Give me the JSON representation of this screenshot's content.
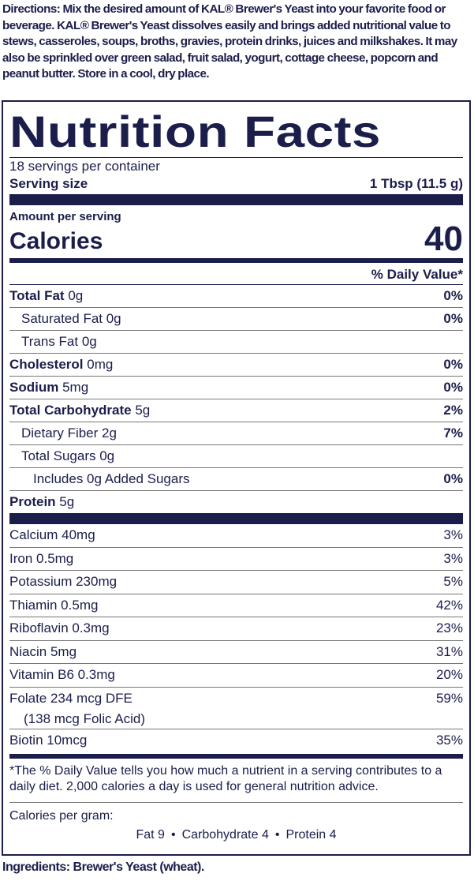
{
  "directions": {
    "label": "Directions:",
    "text": "Mix the desired amount of KAL® Brewer's Yeast into your favorite food or beverage. KAL® Brewer's Yeast dissolves easily and brings added nutritional value to stews, casseroles, soups, broths, gravies, protein drinks, juices and milkshakes. It may also be sprinkled over green salad, fruit salad, yogurt, cottage cheese, popcorn and peanut butter. Store in a cool, dry place."
  },
  "label": {
    "title": "Nutrition Facts",
    "servings": "18 servings per container",
    "serving_size": {
      "label": "Serving size",
      "value": "1 Tbsp (11.5 g)"
    },
    "amount_per_serving": "Amount per serving",
    "calories": {
      "label": "Calories",
      "value": "40"
    },
    "dv_header": "% Daily Value*",
    "nutrients": [
      {
        "name": "Total Fat",
        "amount": "0g",
        "dv": "0%"
      },
      {
        "name": "Saturated Fat 0g",
        "dv": "0%"
      },
      {
        "name": "Trans Fat 0g"
      },
      {
        "name": "Cholesterol",
        "amount": "0mg",
        "dv": "0%"
      },
      {
        "name": "Sodium",
        "amount": "5mg",
        "dv": "0%"
      },
      {
        "name": "Total Carbohydrate",
        "amount": "5g",
        "dv": "2%"
      },
      {
        "name": "Dietary Fiber 2g",
        "dv": "7%"
      },
      {
        "name": "Total Sugars 0g"
      },
      {
        "name": "Includes 0g Added Sugars",
        "dv": "0%"
      },
      {
        "name": "Protein",
        "amount": "5g"
      }
    ],
    "vitamins": [
      {
        "name": "Calcium 40mg",
        "dv": "3%"
      },
      {
        "name": "Iron 0.5mg",
        "dv": "3%"
      },
      {
        "name": "Potassium 230mg",
        "dv": "5%"
      },
      {
        "name": "Thiamin 0.5mg",
        "dv": "42%"
      },
      {
        "name": "Riboflavin 0.3mg",
        "dv": "23%"
      },
      {
        "name": "Niacin 5mg",
        "dv": "31%"
      },
      {
        "name": "Vitamin B6 0.3mg",
        "dv": "20%"
      },
      {
        "name": "Folate 234 mcg DFE",
        "note": "(138 mcg Folic Acid)",
        "dv": "59%"
      },
      {
        "name": "Biotin 10mcg",
        "dv": "35%"
      }
    ],
    "footnote": "*The % Daily Value tells you how much a nutrient in a serving contributes to a daily diet. 2,000 calories a day is used for general nutrition advice.",
    "calories_per_gram": {
      "label": "Calories per gram:",
      "values": [
        "Fat 9",
        "Carbohydrate 4",
        "Protein 4"
      ]
    }
  },
  "ingredients": {
    "label": "Ingredients:",
    "text": "Brewer's Yeast (wheat)."
  }
}
